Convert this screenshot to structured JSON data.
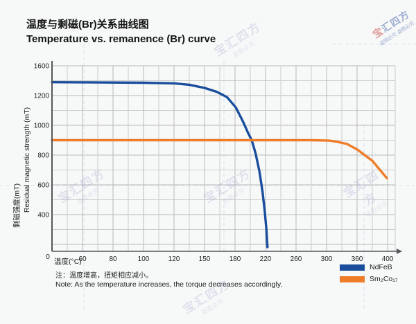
{
  "header": {
    "title_zh": "温度与剩磁(Br)关系曲线图",
    "title_en": "Temperature vs. remanence (Br) curve"
  },
  "chart_data": {
    "type": "line",
    "title_zh": "温度与剩磁(Br)关系曲线图",
    "title_en": "Temperature vs. remanence (Br) curve",
    "xlabel": "温度(°C)",
    "ylabel_zh": "剩磁强度(mT)",
    "ylabel_en": "Residual magnetic strength (mT)",
    "x_ticks": [
      0,
      60,
      80,
      100,
      120,
      150,
      180,
      220,
      260,
      300,
      360,
      400
    ],
    "y_ticks": [
      1600,
      1200,
      1000,
      800,
      600,
      400,
      0
    ],
    "origin_label": "0",
    "axis_layout_note": "tick marks are evenly spaced in pixels even though values are non-linear",
    "grid": true,
    "legend_position": "bottom-right",
    "series": [
      {
        "name": "NdFeB",
        "color": "#1a4e9d",
        "points": [
          [
            0,
            1380
          ],
          [
            60,
            1378
          ],
          [
            100,
            1372
          ],
          [
            120,
            1364
          ],
          [
            135,
            1345
          ],
          [
            150,
            1302
          ],
          [
            162,
            1250
          ],
          [
            172,
            1190
          ],
          [
            181,
            1120
          ],
          [
            190,
            1030
          ],
          [
            197,
            950
          ],
          [
            202,
            898
          ],
          [
            207,
            810
          ],
          [
            212,
            690
          ],
          [
            216,
            555
          ],
          [
            219,
            420
          ],
          [
            221,
            250
          ],
          [
            222,
            110
          ],
          [
            222.5,
            45
          ]
        ]
      },
      {
        "name": "Sm₂Co₁₇",
        "color": "#ee7c28",
        "points": [
          [
            0,
            900
          ],
          [
            100,
            900
          ],
          [
            200,
            900
          ],
          [
            280,
            900
          ],
          [
            305,
            897
          ],
          [
            320,
            890
          ],
          [
            340,
            875
          ],
          [
            360,
            838
          ],
          [
            380,
            762
          ],
          [
            399,
            645
          ]
        ]
      }
    ],
    "colors": {
      "grid_major": "#b9b9b9",
      "grid_minor": "#cdcdcd",
      "axis": "#54565a",
      "background": "#f7f8f8"
    }
  },
  "footer": {
    "note_zh": "注：温度增高，扭矩相应减小。",
    "note_en": "Note: As the temperature increases, the torque decreases accordingly."
  },
  "watermark": {
    "brand": "宝汇四方",
    "brand_first": "宝",
    "brand_rest": "汇四方",
    "warning": "盗图必究",
    "warning_double": "盗图必究 盗图必究",
    "color_red": "#c8443f",
    "color_blue": "#4563a9",
    "faint_color": "#98a2cc",
    "guide_color": "#b9c2e6"
  }
}
